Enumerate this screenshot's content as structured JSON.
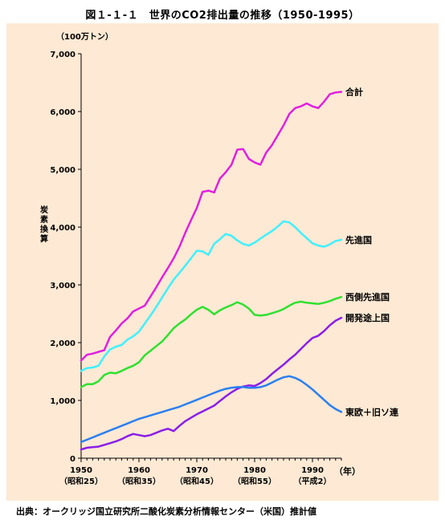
{
  "title": "図１-１-１　世界のCO2排出量の推移（1950-1995）",
  "source": "出典：オークリッジ国立研究所二酸化炭素分析情報センター（米国）推計値",
  "chart_data": {
    "type": "line",
    "title": "図１-１-１　世界のCO2排出量の推移（1950-1995）",
    "unit_label": "（100万トン）",
    "ylabel": "炭素換算",
    "xlabel": "（年）",
    "xlim": [
      1950,
      1995
    ],
    "ylim": [
      0,
      7000
    ],
    "grid": false,
    "legend": "line-end labels (right)",
    "y_ticks": [
      0,
      1000,
      2000,
      3000,
      4000,
      5000,
      6000,
      7000
    ],
    "y_tick_labels": [
      "0",
      "1,000",
      "2,000",
      "3,000",
      "4,000",
      "5,000",
      "6,000",
      "7,000"
    ],
    "x_ticks": [
      1950,
      1960,
      1970,
      1980,
      1990
    ],
    "x_tick_labels": [
      "1950",
      "1960",
      "1970",
      "1980",
      "1990"
    ],
    "x_tick_sublabels": [
      "（昭和25）",
      "（昭和35）",
      "（昭和45）",
      "（昭和55）",
      "（平成2）"
    ],
    "x": [
      1950,
      1951,
      1952,
      1953,
      1954,
      1955,
      1956,
      1957,
      1958,
      1959,
      1960,
      1961,
      1962,
      1963,
      1964,
      1965,
      1966,
      1967,
      1968,
      1969,
      1970,
      1971,
      1972,
      1973,
      1974,
      1975,
      1976,
      1977,
      1978,
      1979,
      1980,
      1981,
      1982,
      1983,
      1984,
      1985,
      1986,
      1987,
      1988,
      1989,
      1990,
      1991,
      1992,
      1993,
      1994,
      1995
    ],
    "series": [
      {
        "name": "合計",
        "color": "#e020e0",
        "values": [
          1690,
          1790,
          1810,
          1840,
          1870,
          2100,
          2210,
          2330,
          2420,
          2540,
          2590,
          2640,
          2800,
          2960,
          3130,
          3290,
          3460,
          3660,
          3900,
          4120,
          4330,
          4610,
          4630,
          4600,
          4840,
          4950,
          5080,
          5340,
          5350,
          5180,
          5120,
          5080,
          5290,
          5420,
          5590,
          5760,
          5960,
          6060,
          6090,
          6140,
          6090,
          6060,
          6170,
          6300,
          6330,
          6340
        ]
      },
      {
        "name": "先進国",
        "color": "#40f0ff",
        "values": [
          1510,
          1560,
          1570,
          1600,
          1760,
          1880,
          1930,
          1960,
          2050,
          2110,
          2190,
          2330,
          2470,
          2620,
          2780,
          2940,
          3090,
          3210,
          3330,
          3460,
          3590,
          3580,
          3520,
          3710,
          3790,
          3880,
          3850,
          3770,
          3710,
          3680,
          3730,
          3800,
          3870,
          3930,
          4010,
          4100,
          4080,
          4000,
          3900,
          3810,
          3720,
          3680,
          3660,
          3700,
          3760,
          3780
        ]
      },
      {
        "name": "西側先進国",
        "color": "#30e030",
        "values": [
          1230,
          1280,
          1280,
          1330,
          1440,
          1480,
          1470,
          1510,
          1560,
          1600,
          1660,
          1780,
          1860,
          1940,
          2020,
          2130,
          2250,
          2330,
          2400,
          2490,
          2570,
          2620,
          2570,
          2490,
          2560,
          2610,
          2650,
          2700,
          2660,
          2590,
          2480,
          2470,
          2480,
          2510,
          2540,
          2580,
          2640,
          2690,
          2710,
          2690,
          2680,
          2670,
          2690,
          2720,
          2760,
          2790
        ]
      },
      {
        "name": "開発途上国",
        "color": "#8a1ee8",
        "values": [
          150,
          180,
          190,
          200,
          230,
          260,
          290,
          330,
          380,
          420,
          400,
          380,
          400,
          440,
          480,
          510,
          470,
          560,
          640,
          700,
          760,
          810,
          860,
          910,
          990,
          1070,
          1140,
          1200,
          1240,
          1260,
          1250,
          1300,
          1370,
          1460,
          1540,
          1620,
          1710,
          1790,
          1890,
          1990,
          2080,
          2120,
          2200,
          2300,
          2380,
          2430
        ]
      },
      {
        "name": "東欧＋旧ソ連",
        "color": "#2a7ff0",
        "values": [
          280,
          320,
          360,
          400,
          440,
          480,
          520,
          560,
          600,
          640,
          680,
          710,
          740,
          770,
          800,
          830,
          860,
          890,
          930,
          970,
          1010,
          1050,
          1090,
          1130,
          1170,
          1200,
          1220,
          1230,
          1230,
          1220,
          1220,
          1230,
          1260,
          1310,
          1360,
          1400,
          1420,
          1390,
          1340,
          1270,
          1190,
          1100,
          1010,
          920,
          850,
          800
        ]
      }
    ]
  }
}
